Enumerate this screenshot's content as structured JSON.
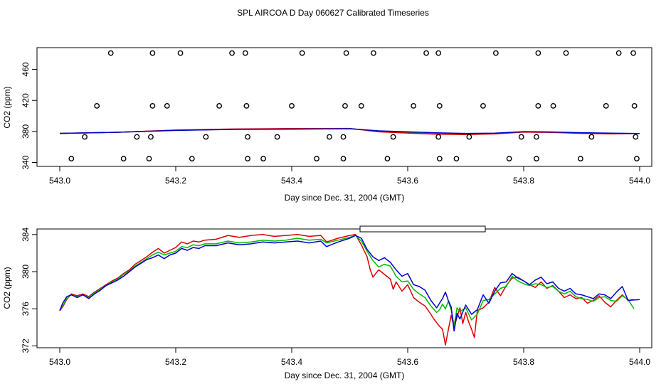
{
  "title": "SPL AIRCOA D  Day 060627  Calibrated Timeseries",
  "chart_data": [
    {
      "type": "scatter",
      "xlabel": "Day since Dec. 31, 2004 (GMT)",
      "ylabel": "CO2 (ppm)",
      "xlim": [
        543.0,
        544.0
      ],
      "ylim": [
        335,
        488
      ],
      "xticks": [
        543.0,
        543.2,
        543.4,
        543.6,
        543.8,
        544.0
      ],
      "xtick_labels": [
        "543.0",
        "543.2",
        "543.4",
        "543.6",
        "543.8",
        "544.0"
      ],
      "yticks": [
        340,
        380,
        420,
        460
      ],
      "ytick_labels": [
        "340",
        "380",
        "420",
        "460"
      ],
      "calibration_points": [
        {
          "x": 543.088,
          "y": 481
        },
        {
          "x": 543.16,
          "y": 481
        },
        {
          "x": 543.208,
          "y": 481
        },
        {
          "x": 543.297,
          "y": 481
        },
        {
          "x": 543.32,
          "y": 481
        },
        {
          "x": 543.418,
          "y": 481
        },
        {
          "x": 543.494,
          "y": 481
        },
        {
          "x": 543.541,
          "y": 481
        },
        {
          "x": 543.632,
          "y": 481
        },
        {
          "x": 543.653,
          "y": 481
        },
        {
          "x": 543.752,
          "y": 481
        },
        {
          "x": 543.825,
          "y": 481
        },
        {
          "x": 543.873,
          "y": 481
        },
        {
          "x": 543.964,
          "y": 481
        },
        {
          "x": 543.989,
          "y": 481
        },
        {
          "x": 543.064,
          "y": 413
        },
        {
          "x": 543.16,
          "y": 413
        },
        {
          "x": 543.185,
          "y": 413
        },
        {
          "x": 543.275,
          "y": 413
        },
        {
          "x": 543.322,
          "y": 413
        },
        {
          "x": 543.4,
          "y": 413
        },
        {
          "x": 543.492,
          "y": 413
        },
        {
          "x": 543.52,
          "y": 413
        },
        {
          "x": 543.61,
          "y": 413
        },
        {
          "x": 543.655,
          "y": 413
        },
        {
          "x": 543.73,
          "y": 413
        },
        {
          "x": 543.825,
          "y": 413
        },
        {
          "x": 543.851,
          "y": 413
        },
        {
          "x": 543.942,
          "y": 413
        },
        {
          "x": 543.991,
          "y": 413
        },
        {
          "x": 543.043,
          "y": 373
        },
        {
          "x": 543.133,
          "y": 373
        },
        {
          "x": 543.157,
          "y": 373
        },
        {
          "x": 543.252,
          "y": 373
        },
        {
          "x": 543.324,
          "y": 373
        },
        {
          "x": 543.375,
          "y": 373
        },
        {
          "x": 543.465,
          "y": 373
        },
        {
          "x": 543.489,
          "y": 373
        },
        {
          "x": 543.575,
          "y": 373
        },
        {
          "x": 543.653,
          "y": 373
        },
        {
          "x": 543.706,
          "y": 373
        },
        {
          "x": 543.796,
          "y": 373
        },
        {
          "x": 543.822,
          "y": 373
        },
        {
          "x": 543.917,
          "y": 373
        },
        {
          "x": 543.993,
          "y": 373
        },
        {
          "x": 543.02,
          "y": 345
        },
        {
          "x": 543.11,
          "y": 345
        },
        {
          "x": 543.154,
          "y": 345
        },
        {
          "x": 543.228,
          "y": 345
        },
        {
          "x": 543.324,
          "y": 345
        },
        {
          "x": 543.351,
          "y": 345
        },
        {
          "x": 543.443,
          "y": 345
        },
        {
          "x": 543.489,
          "y": 345
        },
        {
          "x": 543.565,
          "y": 345
        },
        {
          "x": 543.655,
          "y": 345
        },
        {
          "x": 543.684,
          "y": 345
        },
        {
          "x": 543.775,
          "y": 345
        },
        {
          "x": 543.822,
          "y": 345
        },
        {
          "x": 543.898,
          "y": 345
        },
        {
          "x": 543.995,
          "y": 345
        }
      ],
      "series": [
        {
          "color": "#00bb00",
          "x": [
            543.0,
            543.1,
            543.2,
            543.3,
            543.4,
            543.5,
            543.55,
            543.6,
            543.65,
            543.7,
            543.75,
            543.8,
            543.85,
            543.9,
            543.95,
            543.99
          ],
          "values": [
            377.5,
            379.0,
            381.5,
            382.8,
            383.2,
            383.6,
            380.5,
            379.0,
            377.8,
            377.2,
            377.0,
            379.5,
            379.0,
            378.0,
            377.5,
            377.3
          ]
        },
        {
          "color": "#dd0000",
          "x": [
            543.0,
            543.1,
            543.2,
            543.3,
            543.4,
            543.5,
            543.55,
            543.6,
            543.65,
            543.7,
            543.75,
            543.8,
            543.85,
            543.9,
            543.95,
            543.99
          ],
          "values": [
            377.5,
            379.0,
            381.8,
            383.2,
            383.8,
            383.9,
            379.5,
            378.0,
            376.5,
            376.0,
            377.0,
            379.2,
            378.8,
            377.5,
            377.0,
            377.2
          ]
        },
        {
          "color": "#0000cc",
          "x": [
            543.0,
            543.1,
            543.2,
            543.3,
            543.4,
            543.5,
            543.55,
            543.6,
            543.65,
            543.7,
            543.75,
            543.8,
            543.85,
            543.9,
            543.95,
            544.0
          ],
          "values": [
            377.6,
            379.0,
            381.4,
            382.6,
            383.0,
            383.6,
            380.8,
            379.5,
            378.2,
            377.5,
            377.8,
            379.8,
            379.3,
            378.4,
            377.8,
            377.4
          ]
        }
      ]
    },
    {
      "type": "line",
      "xlabel": "Day since Dec. 31, 2004 (GMT)",
      "ylabel": "CO2 (ppm)",
      "xlim": [
        543.0,
        544.0
      ],
      "ylim": [
        371.8,
        384.6
      ],
      "xticks": [
        543.0,
        543.2,
        543.4,
        543.6,
        543.8,
        544.0
      ],
      "xtick_labels": [
        "543.0",
        "543.2",
        "543.4",
        "543.6",
        "543.8",
        "544.0"
      ],
      "yticks": [
        372,
        376,
        380,
        384
      ],
      "ytick_labels": [
        "372",
        "376",
        "380",
        "384"
      ],
      "legend": "top-right, empty box",
      "series": [
        {
          "color": "#dd0000",
          "x": [
            543.0,
            543.005,
            543.012,
            543.02,
            543.03,
            543.04,
            543.05,
            543.06,
            543.07,
            543.08,
            543.09,
            543.1,
            543.11,
            543.12,
            543.13,
            543.14,
            543.15,
            543.16,
            543.17,
            543.18,
            543.19,
            543.2,
            543.21,
            543.22,
            543.23,
            543.24,
            543.25,
            543.27,
            543.29,
            543.31,
            543.33,
            543.35,
            543.37,
            543.39,
            543.41,
            543.43,
            543.45,
            543.46,
            543.48,
            543.5,
            543.51,
            543.52,
            543.53,
            543.535,
            543.54,
            543.55,
            543.56,
            543.57,
            543.575,
            543.58,
            543.59,
            543.6,
            543.61,
            543.62,
            543.63,
            543.64,
            543.645,
            543.65,
            543.655,
            543.66,
            543.665,
            543.67,
            543.675,
            543.68,
            543.685,
            543.69,
            543.695,
            543.7,
            543.705,
            543.71,
            543.715,
            543.72,
            543.73,
            543.74,
            543.75,
            543.76,
            543.77,
            543.78,
            543.79,
            543.8,
            543.81,
            543.82,
            543.83,
            543.84,
            543.85,
            543.86,
            543.87,
            543.88,
            543.89,
            543.9,
            543.91,
            543.92,
            543.93,
            543.94,
            543.95,
            543.96,
            543.97,
            543.98,
            543.99
          ],
          "values": [
            375.8,
            376.2,
            377.0,
            377.6,
            377.4,
            377.6,
            377.3,
            377.8,
            378.2,
            378.6,
            379.0,
            379.3,
            379.8,
            380.2,
            380.8,
            381.2,
            381.6,
            382.1,
            382.5,
            382.0,
            382.3,
            382.6,
            383.2,
            383.0,
            383.3,
            383.2,
            383.4,
            383.5,
            383.9,
            383.7,
            383.9,
            384.0,
            383.8,
            383.9,
            384.0,
            383.8,
            383.9,
            383.2,
            383.6,
            383.9,
            384.0,
            382.9,
            381.6,
            380.3,
            379.4,
            380.2,
            379.7,
            379.2,
            378.1,
            378.9,
            377.9,
            378.6,
            377.2,
            376.7,
            376.3,
            375.4,
            374.9,
            374.5,
            374.1,
            373.8,
            372.1,
            373.7,
            375.3,
            374.0,
            375.1,
            376.1,
            374.4,
            375.6,
            374.6,
            373.8,
            372.9,
            375.8,
            376.1,
            376.7,
            378.3,
            377.4,
            378.5,
            379.3,
            379.4,
            379.0,
            378.6,
            378.3,
            378.9,
            378.2,
            378.5,
            377.9,
            377.2,
            377.5,
            377.1,
            377.2,
            376.6,
            376.9,
            377.4,
            376.7,
            376.2,
            376.9,
            377.5,
            376.9,
            377.0
          ]
        },
        {
          "color": "#00bb00",
          "x": [
            543.0,
            543.005,
            543.012,
            543.02,
            543.03,
            543.04,
            543.05,
            543.06,
            543.07,
            543.08,
            543.09,
            543.1,
            543.11,
            543.12,
            543.13,
            543.14,
            543.15,
            543.16,
            543.17,
            543.18,
            543.19,
            543.2,
            543.21,
            543.22,
            543.23,
            543.24,
            543.25,
            543.27,
            543.29,
            543.31,
            543.33,
            543.35,
            543.37,
            543.39,
            543.41,
            543.43,
            543.45,
            543.46,
            543.48,
            543.5,
            543.51,
            543.52,
            543.53,
            543.54,
            543.55,
            543.56,
            543.57,
            543.58,
            543.59,
            543.6,
            543.61,
            543.62,
            543.63,
            543.64,
            543.65,
            543.655,
            543.66,
            543.665,
            543.67,
            543.675,
            543.68,
            543.685,
            543.69,
            543.7,
            543.71,
            543.72,
            543.73,
            543.74,
            543.75,
            543.76,
            543.77,
            543.78,
            543.79,
            543.8,
            543.81,
            543.82,
            543.83,
            543.84,
            543.85,
            543.86,
            543.87,
            543.88,
            543.89,
            543.9,
            543.91,
            543.92,
            543.93,
            543.94,
            543.95,
            543.96,
            543.97,
            543.98,
            543.99
          ],
          "values": [
            375.9,
            376.3,
            377.1,
            377.5,
            377.3,
            377.5,
            377.2,
            377.7,
            378.1,
            378.5,
            378.9,
            379.2,
            379.7,
            380.1,
            380.6,
            381.0,
            381.4,
            381.8,
            382.1,
            381.8,
            382.0,
            382.2,
            382.7,
            382.6,
            382.9,
            382.8,
            383.0,
            383.0,
            383.3,
            383.1,
            383.2,
            383.4,
            383.3,
            383.4,
            383.6,
            383.4,
            383.5,
            383.1,
            383.4,
            383.7,
            383.9,
            383.3,
            382.2,
            381.2,
            380.5,
            380.8,
            380.6,
            379.5,
            378.9,
            379.0,
            378.1,
            377.6,
            377.2,
            376.3,
            375.6,
            375.9,
            376.5,
            376.0,
            376.8,
            375.9,
            374.2,
            376.1,
            375.7,
            376.1,
            374.8,
            375.4,
            376.9,
            377.0,
            377.6,
            378.2,
            378.4,
            379.5,
            379.0,
            378.7,
            378.5,
            378.7,
            378.6,
            378.3,
            378.4,
            377.9,
            377.6,
            377.9,
            377.3,
            377.1,
            377.0,
            376.8,
            377.2,
            377.3,
            376.9,
            376.8,
            377.4,
            377.0,
            376.0
          ]
        },
        {
          "color": "#0000cc",
          "x": [
            543.0,
            543.005,
            543.012,
            543.02,
            543.03,
            543.04,
            543.05,
            543.06,
            543.07,
            543.08,
            543.09,
            543.1,
            543.11,
            543.12,
            543.13,
            543.14,
            543.15,
            543.16,
            543.17,
            543.18,
            543.19,
            543.2,
            543.21,
            543.22,
            543.23,
            543.24,
            543.25,
            543.27,
            543.29,
            543.31,
            543.33,
            543.35,
            543.37,
            543.39,
            543.41,
            543.43,
            543.45,
            543.46,
            543.48,
            543.5,
            543.51,
            543.52,
            543.53,
            543.54,
            543.55,
            543.56,
            543.57,
            543.58,
            543.59,
            543.6,
            543.61,
            543.62,
            543.63,
            543.64,
            543.65,
            543.66,
            543.665,
            543.67,
            543.675,
            543.68,
            543.685,
            543.69,
            543.7,
            543.71,
            543.72,
            543.73,
            543.74,
            543.75,
            543.76,
            543.77,
            543.78,
            543.79,
            543.8,
            543.81,
            543.82,
            543.83,
            543.84,
            543.85,
            543.86,
            543.87,
            543.88,
            543.89,
            543.9,
            543.91,
            543.92,
            543.93,
            543.94,
            543.95,
            543.96,
            543.97,
            543.98,
            544.0
          ],
          "values": [
            375.8,
            376.6,
            377.3,
            377.5,
            377.2,
            377.5,
            377.1,
            377.6,
            378.0,
            378.5,
            378.8,
            379.1,
            379.5,
            380.0,
            380.5,
            380.9,
            381.3,
            381.5,
            381.8,
            381.4,
            381.8,
            382.0,
            382.5,
            382.3,
            382.6,
            382.5,
            382.8,
            382.8,
            383.1,
            382.9,
            383.0,
            383.2,
            383.1,
            383.2,
            383.3,
            383.1,
            383.3,
            382.7,
            383.2,
            383.6,
            383.9,
            383.6,
            382.4,
            381.6,
            381.2,
            381.5,
            381.0,
            380.2,
            379.5,
            379.8,
            378.6,
            378.4,
            378.0,
            376.9,
            376.1,
            377.1,
            377.8,
            376.9,
            376.2,
            373.6,
            375.5,
            374.9,
            376.4,
            375.4,
            375.9,
            377.5,
            376.6,
            377.9,
            378.8,
            378.9,
            379.8,
            379.3,
            379.0,
            378.6,
            379.1,
            379.4,
            378.7,
            378.9,
            378.2,
            377.9,
            378.2,
            377.6,
            377.5,
            377.3,
            377.1,
            377.6,
            377.5,
            377.1,
            377.8,
            378.4,
            376.9,
            377.0
          ]
        }
      ]
    }
  ]
}
